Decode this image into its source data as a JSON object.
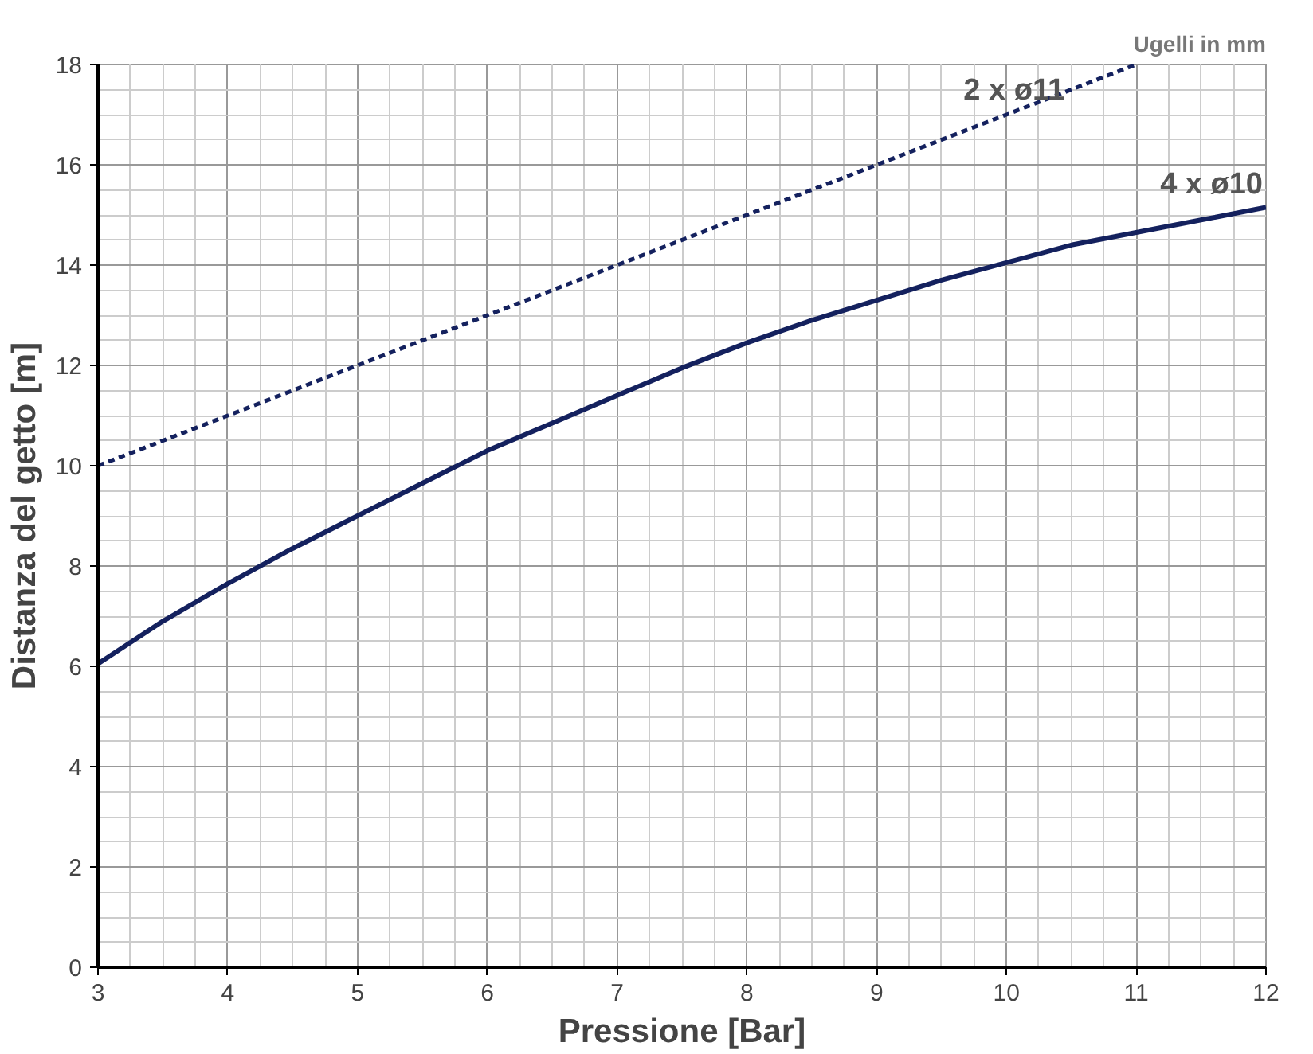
{
  "chart_data": {
    "type": "line",
    "xlabel": "Pressione [Bar]",
    "ylabel": "Distanza del getto [m]",
    "annotations": [
      "Ugelli in mm"
    ],
    "xlim": [
      3,
      12
    ],
    "ylim": [
      0,
      18
    ],
    "xticks": [
      3,
      4,
      5,
      6,
      7,
      8,
      9,
      10,
      11,
      12
    ],
    "yticks": [
      0,
      2,
      4,
      6,
      8,
      10,
      12,
      14,
      16,
      18
    ],
    "grid": true,
    "series": [
      {
        "name": "2 x ø11",
        "color": "#14215e",
        "line_style": "dashed",
        "x": [
          3,
          4,
          5,
          6,
          7,
          8,
          9,
          10,
          11
        ],
        "values": [
          10,
          11,
          12,
          13,
          14,
          15,
          16,
          17,
          18
        ]
      },
      {
        "name": "4 x ø10",
        "color": "#14215e",
        "line_style": "solid",
        "x": [
          3,
          3.5,
          4,
          4.5,
          5,
          5.5,
          6,
          6.5,
          7,
          7.5,
          8,
          8.5,
          9,
          9.5,
          10,
          10.5,
          11,
          11.5,
          12
        ],
        "values": [
          6.05,
          6.9,
          7.65,
          8.35,
          9.0,
          9.65,
          10.3,
          10.85,
          11.4,
          11.95,
          12.45,
          12.9,
          13.3,
          13.7,
          14.05,
          14.4,
          14.65,
          14.9,
          15.15
        ]
      }
    ]
  }
}
